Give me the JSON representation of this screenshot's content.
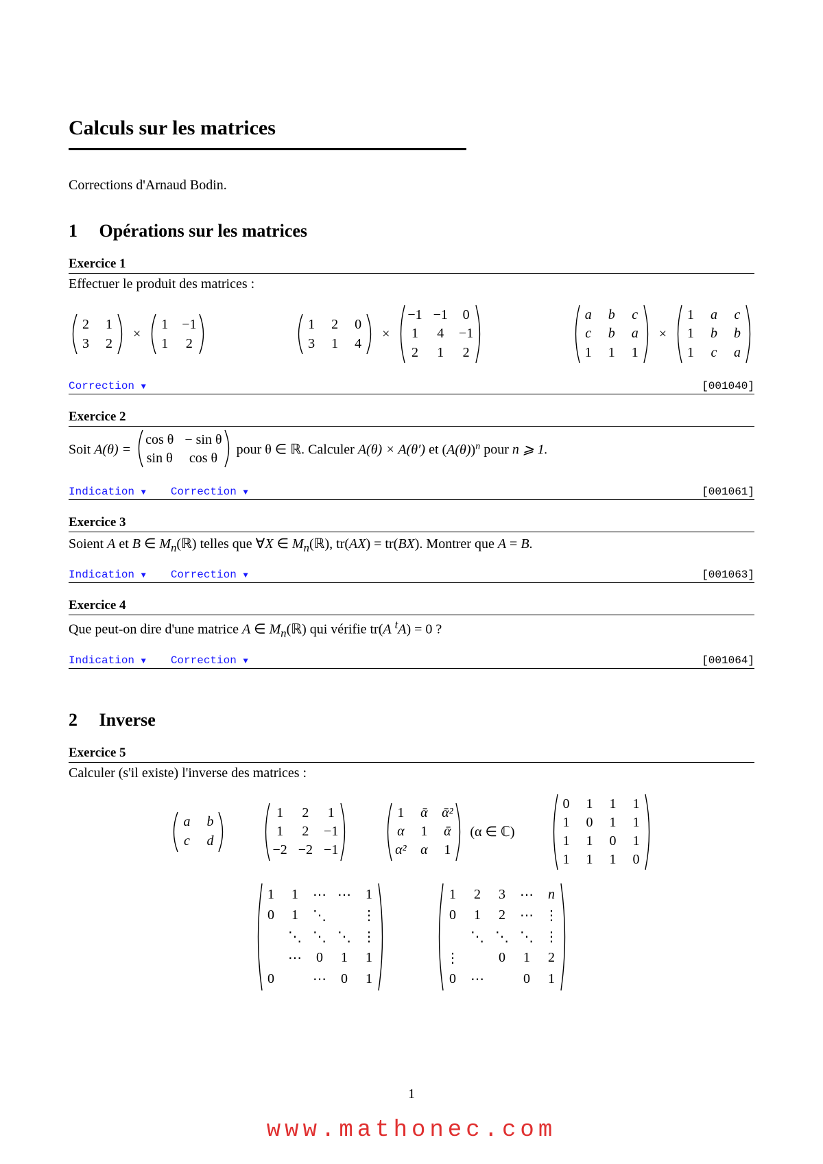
{
  "colors": {
    "text": "#000000",
    "link": "#1a1aff",
    "watermark": "#e03030",
    "background": "#ffffff"
  },
  "fonts": {
    "body": "Times New Roman",
    "mono": "Courier New",
    "script": "Brush Script MT"
  },
  "title": "Calculs sur les matrices",
  "credits": "Corrections d'Arnaud Bodin.",
  "page_number": "1",
  "watermark": "www.mathonec.com",
  "link_labels": {
    "indication": "Indication",
    "correction": "Correction",
    "triangle": "▼"
  },
  "sections": {
    "s1": {
      "num": "1",
      "title": "Opérations sur les matrices"
    },
    "s2": {
      "num": "2",
      "title": "Inverse"
    }
  },
  "exercises": {
    "e1": {
      "label": "Exercice 1",
      "prompt": "Effectuer le produit des matrices :",
      "id": "[001040]",
      "has_indication": false,
      "products": [
        {
          "left": {
            "cols": 2,
            "cells": [
              "2",
              "1",
              "3",
              "2"
            ]
          },
          "right": {
            "cols": 2,
            "cells": [
              "1",
              "−1",
              "1",
              "2"
            ]
          }
        },
        {
          "left": {
            "cols": 3,
            "cells": [
              "1",
              "2",
              "0",
              "3",
              "1",
              "4"
            ]
          },
          "right": {
            "cols": 3,
            "cells": [
              "−1",
              "−1",
              "0",
              "1",
              "4",
              "−1",
              "2",
              "1",
              "2"
            ]
          }
        },
        {
          "left": {
            "cols": 3,
            "cells": [
              "a",
              "b",
              "c",
              "c",
              "b",
              "a",
              "1",
              "1",
              "1"
            ]
          },
          "right": {
            "cols": 3,
            "cells": [
              "1",
              "a",
              "c",
              "1",
              "b",
              "b",
              "1",
              "c",
              "a"
            ]
          }
        }
      ]
    },
    "e2": {
      "label": "Exercice 2",
      "prefix": "Soit ",
      "eqprefix": "A(θ) = ",
      "matrix": {
        "cols": 2,
        "cells": [
          "cos θ",
          "− sin θ",
          "sin θ",
          "cos θ"
        ]
      },
      "mid": " pour θ ∈ ",
      "real": "ℝ",
      "rest1": ". Calculer ",
      "expr1": "A(θ) × A(θ′)",
      "rest2": " et ",
      "expr2_open": "(",
      "expr2_inner": "A(θ)",
      "expr2_close": ")",
      "expr2_pow": "n",
      "rest3": " pour ",
      "cond": "n ⩾ 1.",
      "id": "[001061]",
      "has_indication": true
    },
    "e3": {
      "label": "Exercice 3",
      "line_html": "Soient <span class='it'>A</span> et <span class='it'>B</span> ∈ <span class='script'>M</span><sub class='it'>n</sub>(ℝ) telles que ∀<span class='it'>X</span> ∈ <span class='script'>M</span><sub class='it'>n</sub>(ℝ), tr(<span class='it'>AX</span>) = tr(<span class='it'>BX</span>). Montrer que <span class='it'>A</span> = <span class='it'>B</span>.",
      "id": "[001063]",
      "has_indication": true
    },
    "e4": {
      "label": "Exercice 4",
      "line_html": "Que peut-on dire d'une matrice <span class='it'>A</span> ∈ <span class='script'>M</span><sub class='it'>n</sub>(ℝ) qui vérifie tr(<span class='it'>A</span> <sup class='it'>t</sup><span class='it'>A</span>) = 0 ?",
      "id": "[001064]",
      "has_indication": true
    },
    "e5": {
      "label": "Exercice 5",
      "prompt": "Calculer (s'il existe) l'inverse des matrices :",
      "row1": [
        {
          "cols": 2,
          "cells": [
            "a",
            "b",
            "c",
            "d"
          ]
        },
        {
          "cols": 3,
          "cells": [
            "1",
            "2",
            "1",
            "1",
            "2",
            "−1",
            "−2",
            "−2",
            "−1"
          ]
        },
        {
          "cols": 3,
          "cells": [
            "1",
            "ᾱ",
            "ᾱ²",
            "α",
            "1",
            "ᾱ",
            "α²",
            "α",
            "1"
          ],
          "suffix": "(α ∈ ℂ)"
        },
        {
          "cols": 4,
          "cells": [
            "0",
            "1",
            "1",
            "1",
            "1",
            "0",
            "1",
            "1",
            "1",
            "1",
            "0",
            "1",
            "1",
            "1",
            "1",
            "0"
          ]
        }
      ],
      "row2": [
        {
          "cols": 5,
          "cells": [
            "1",
            "1",
            "⋯",
            "⋯",
            "1",
            "0",
            "1",
            "⋱",
            " ",
            "⋮",
            " ",
            "⋱",
            "⋱",
            "⋱",
            "⋮",
            " ",
            "⋯",
            "0",
            "1",
            "1",
            "0",
            " ",
            "⋯",
            "0",
            "1"
          ]
        },
        {
          "cols": 5,
          "cells": [
            "1",
            "2",
            "3",
            "⋯",
            "n",
            "0",
            "1",
            "2",
            "⋯",
            "⋮",
            " ",
            "⋱",
            "⋱",
            "⋱",
            "⋮",
            "⋮",
            " ",
            "0",
            "1",
            "2",
            "0",
            "⋯",
            " ",
            "0",
            "1"
          ]
        }
      ]
    }
  }
}
